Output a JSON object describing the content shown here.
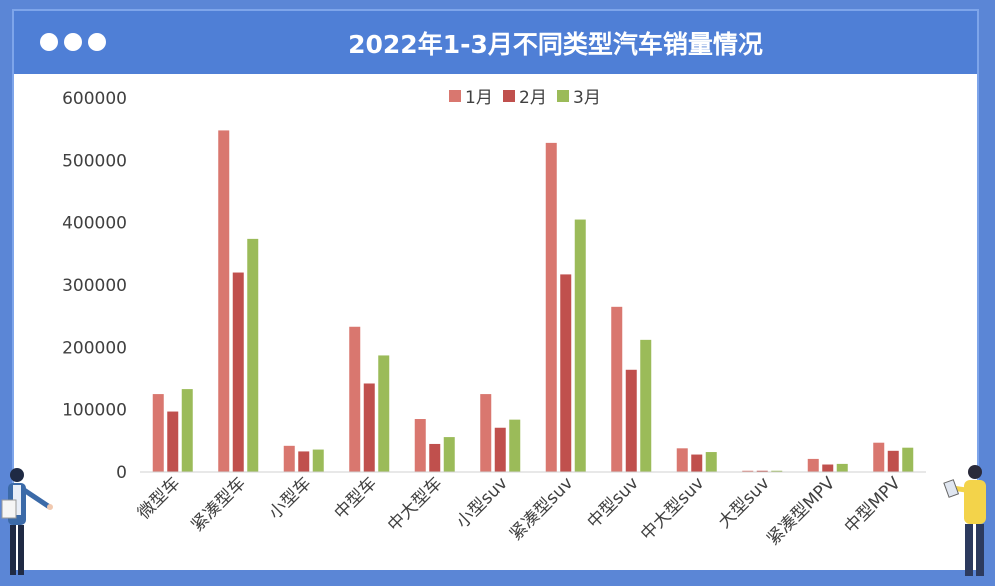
{
  "header": {
    "title": "2022年1-3月不同类型汽车销量情况"
  },
  "colors": {
    "series": [
      "#d9776f",
      "#c0504d",
      "#9bbb59"
    ],
    "header": "#4f7fd6",
    "frame": "#5b86d6"
  },
  "chart_data": {
    "type": "bar",
    "title": "2022年1-3月不同类型汽车销量情况",
    "xlabel": "",
    "ylabel": "",
    "ylim": [
      0,
      600000
    ],
    "yticks": [
      0,
      100000,
      200000,
      300000,
      400000,
      500000,
      600000
    ],
    "ytick_labels": [
      "0",
      "100000",
      "200000",
      "300000",
      "400000",
      "500000",
      "600000"
    ],
    "grid": false,
    "legend_position": "top-center",
    "categories": [
      "微型车",
      "紧凑型车",
      "小型车",
      "中型车",
      "中大型车",
      "小型suv",
      "紧凑型suv",
      "中型suv",
      "中大型suv",
      "大型suv",
      "紧凑型MPV",
      "中型MPV"
    ],
    "series": [
      {
        "name": "1月",
        "values": [
          125000,
          548000,
          42000,
          233000,
          85000,
          125000,
          528000,
          265000,
          38000,
          2000,
          21000,
          47000
        ]
      },
      {
        "name": "2月",
        "values": [
          97000,
          320000,
          33000,
          142000,
          45000,
          71000,
          317000,
          164000,
          28000,
          2000,
          12000,
          34000
        ]
      },
      {
        "name": "3月",
        "values": [
          133000,
          374000,
          36000,
          187000,
          56000,
          84000,
          405000,
          212000,
          32000,
          2000,
          13000,
          39000
        ]
      }
    ]
  }
}
